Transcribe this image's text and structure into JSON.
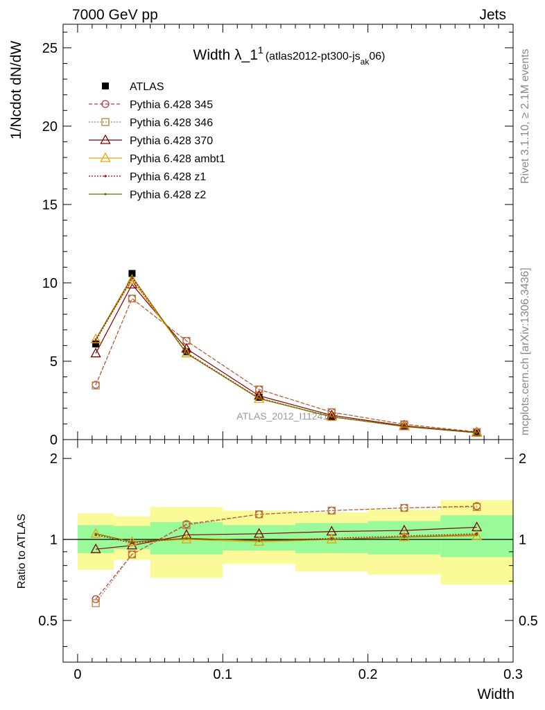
{
  "header": {
    "energy": "7000 GeV pp",
    "process": "Jets"
  },
  "side_text": {
    "rivet": "Rivet 3.1.10, ≥ 2.1M events",
    "site": "mcplots.cern.ch [arXiv:1306.3436]"
  },
  "watermark": "ATLAS_2012_I1124167",
  "colors": {
    "band_inner": "#99fa99",
    "band_outer": "#fafa99",
    "data": "#000000"
  },
  "chart_data": [
    {
      "type": "line",
      "panel": "main",
      "title": {
        "main": "Width λ_1",
        "sup": "1",
        "paren_open": "(atlas2012-pt300-js",
        "sub": "ak",
        "paren_close": "06)"
      },
      "xlabel": "Width",
      "ylabel": "1/Ncdot dN/dW",
      "xlim": [
        -0.01,
        0.3
      ],
      "ylim": [
        0,
        26.5
      ],
      "yticks": [
        0,
        5,
        10,
        15,
        20,
        25
      ],
      "ytick_labels": [
        "0",
        "5",
        "10",
        "15",
        "20",
        "25"
      ],
      "x": [
        0.0125,
        0.0375,
        0.075,
        0.125,
        0.175,
        0.225,
        0.275
      ],
      "x_edges": [
        0.0,
        0.025,
        0.05,
        0.1,
        0.15,
        0.2,
        0.25,
        0.3
      ],
      "legend_position": "top-left",
      "series": [
        {
          "name": "ATLAS",
          "color": "#000000",
          "marker": "square",
          "line": "none",
          "values": [
            6.1,
            10.6,
            5.6,
            2.7,
            1.45,
            0.82,
            0.42
          ]
        },
        {
          "name": "Pythia 6.428 345",
          "color": "#b83c3c",
          "marker": "circle",
          "line": "dashed",
          "values": [
            3.5,
            9.0,
            6.3,
            3.2,
            1.75,
            0.98,
            0.49
          ]
        },
        {
          "name": "Pythia 6.428 346",
          "color": "#b88040",
          "marker": "square-open",
          "line": "dotted",
          "values": [
            3.45,
            9.0,
            6.3,
            3.2,
            1.75,
            0.97,
            0.48
          ]
        },
        {
          "name": "Pythia 6.428 370",
          "color": "#800000",
          "marker": "triangle-open",
          "line": "solid",
          "values": [
            5.5,
            9.9,
            5.8,
            2.8,
            1.55,
            0.88,
            0.46
          ]
        },
        {
          "name": "Pythia 6.428 ambt1",
          "color": "#f0a000",
          "marker": "triangle-open",
          "line": "solid",
          "values": [
            6.4,
            10.2,
            5.5,
            2.6,
            1.45,
            0.84,
            0.43
          ]
        },
        {
          "name": "Pythia 6.428 z1",
          "color": "#c00000",
          "marker": "dot",
          "line": "dotted",
          "values": [
            6.3,
            10.3,
            5.55,
            2.65,
            1.46,
            0.84,
            0.44
          ]
        },
        {
          "name": "Pythia 6.428 z2",
          "color": "#707000",
          "marker": "dot",
          "line": "solid",
          "values": [
            6.4,
            10.4,
            5.5,
            2.62,
            1.45,
            0.83,
            0.43
          ]
        }
      ]
    },
    {
      "type": "line",
      "panel": "ratio",
      "xlabel": "Width",
      "ylabel": "Ratio to ATLAS",
      "xlim": [
        -0.01,
        0.3
      ],
      "ylim": [
        0.35,
        2.35
      ],
      "yticks": [
        0.5,
        1,
        2
      ],
      "ytick_labels": [
        "0.5",
        "1",
        "2"
      ],
      "xticks": [
        0,
        0.1,
        0.2,
        0.3
      ],
      "xtick_labels": [
        "0",
        "0.1",
        "0.2",
        "0.3"
      ],
      "bands": {
        "x_edges": [
          0.0,
          0.025,
          0.05,
          0.1,
          0.15,
          0.2,
          0.25,
          0.3
        ],
        "inner_lo": [
          0.89,
          0.92,
          0.88,
          0.91,
          0.89,
          0.88,
          0.86
        ],
        "inner_hi": [
          1.13,
          1.12,
          1.16,
          1.13,
          1.15,
          1.17,
          1.23
        ],
        "outer_lo": [
          0.77,
          0.84,
          0.72,
          0.81,
          0.76,
          0.74,
          0.68
        ],
        "outer_hi": [
          1.25,
          1.22,
          1.32,
          1.28,
          1.26,
          1.29,
          1.4
        ]
      },
      "series": [
        {
          "name": "Pythia 6.428 345",
          "values": [
            0.6,
            0.88,
            1.14,
            1.24,
            1.28,
            1.31,
            1.33
          ]
        },
        {
          "name": "Pythia 6.428 346",
          "values": [
            0.58,
            0.88,
            1.13,
            1.24,
            1.28,
            1.31,
            1.32
          ]
        },
        {
          "name": "Pythia 6.428 370",
          "values": [
            0.92,
            0.95,
            1.04,
            1.05,
            1.07,
            1.08,
            1.11
          ]
        },
        {
          "name": "Pythia 6.428 ambt1",
          "values": [
            1.05,
            0.98,
            1.0,
            0.98,
            1.0,
            1.02,
            1.03
          ]
        },
        {
          "name": "Pythia 6.428 z1",
          "values": [
            1.04,
            0.97,
            1.01,
            0.99,
            1.01,
            1.03,
            1.05
          ]
        },
        {
          "name": "Pythia 6.428 z2",
          "values": [
            1.05,
            0.98,
            1.01,
            0.99,
            1.0,
            1.02,
            1.04
          ]
        }
      ]
    }
  ]
}
